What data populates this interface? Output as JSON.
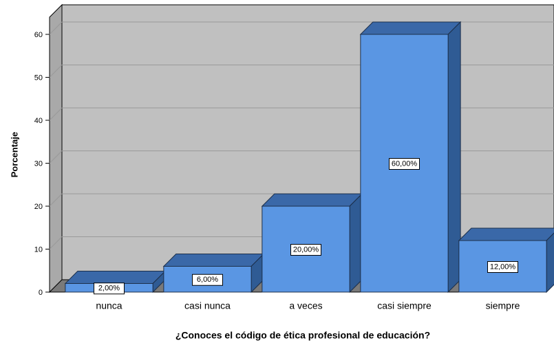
{
  "chart_data": {
    "type": "bar3d",
    "x_label": "¿Conoces el código de ética profesional de educación?",
    "y_label": "Porcentaje",
    "categories": [
      "nunca",
      "casi nunca",
      "a veces",
      "casi siempre",
      "siempre"
    ],
    "values": [
      2,
      6,
      20,
      60,
      12
    ],
    "value_labels": [
      "2,00%",
      "6,00%",
      "20,00%",
      "60,00%",
      "12,00%"
    ],
    "color": "#5a96e3",
    "ylim": [
      0,
      64
    ],
    "yticks": [
      0,
      10,
      20,
      30,
      40,
      50,
      60
    ],
    "grid": true
  }
}
